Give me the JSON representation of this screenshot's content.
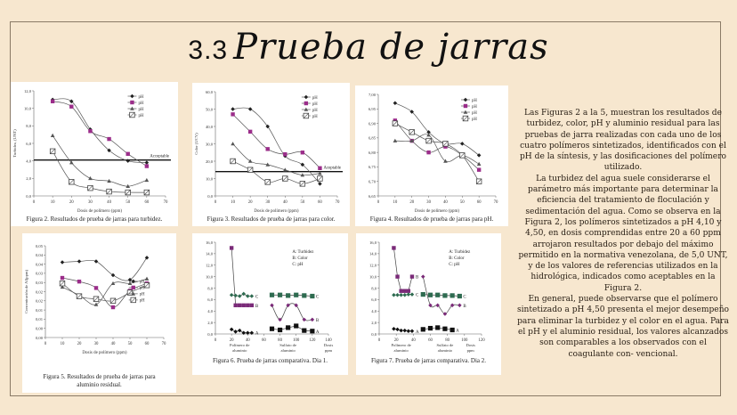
{
  "slide": {
    "title_number": "3.3",
    "title_text": "Prueba de jarras",
    "background": "#f7e7cf",
    "paragraphs": [
      "Las Figuras 2 a la 5, muestran los resultados de turbidez, color, pH y aluminio residual para las pruebas de jarra realizadas con cada uno de los cuatro polímeros sintetizados, identificados con el pH de la síntesis, y las dosificaciones del polímero utilizado.",
      "La turbidez del agua suele considerarse el parámetro más importante para determinar la eficiencia del tratamiento de floculación y sedimentación del agua. Como se observa en la Figura 2, los polímeros sintetizados a pH 4,10 y 4,50, en dosis comprendidas entre 20 a 60 ppm arrojaron resultados por debajo del máximo permitido en la normativa venezolana, de 5,0 UNT, y de los valores de referencias utilizados en la hidrológica, indicados como aceptables en la Figura 2.",
      "En general, puede observarse que el polímero sintetizado a pH 4,50 presenta el mejor desempeño para eliminar la turbidez y el color en el agua. Para el pH y el aluminio residual, los valores alcanzados son comparables a los observados con el coagulante con- vencional."
    ]
  },
  "chart_data": [
    {
      "id": "fig2",
      "type": "line",
      "caption": "Figura 2. Resultados de prueba de jarras para turbidez.",
      "xlabel": "Dosis de polímero (ppm)",
      "ylabel": "Turbidez, (UNT)",
      "xlim": [
        0,
        70
      ],
      "xticks": [
        "0",
        "10",
        "20",
        "30",
        "40",
        "50",
        "60",
        "70"
      ],
      "ylim": [
        0,
        12
      ],
      "yticks": [
        "0,0",
        "2,0",
        "4,0",
        "6,0",
        "8,0",
        "10,0",
        "12,0"
      ],
      "x": [
        10,
        20,
        30,
        40,
        50,
        60
      ],
      "reference_line": {
        "label": "Acceptable",
        "value": 4.1
      },
      "legend": [
        "pH",
        "pH",
        "pH",
        "pH"
      ],
      "series": [
        {
          "name": "pH",
          "marker": "diamond",
          "color": "#222222",
          "values": [
            11.0,
            10.8,
            7.6,
            5.2,
            4.0,
            3.8
          ]
        },
        {
          "name": "pH",
          "marker": "square",
          "color": "#9b2d8a",
          "values": [
            10.8,
            10.2,
            7.4,
            6.5,
            4.8,
            3.4
          ]
        },
        {
          "name": "pH",
          "marker": "triangle",
          "color": "#555555",
          "values": [
            6.9,
            3.8,
            2.0,
            1.7,
            1.1,
            1.8
          ]
        },
        {
          "name": "pH",
          "marker": "open-square",
          "color": "#444444",
          "values": [
            5.1,
            1.6,
            0.9,
            0.5,
            0.4,
            0.4
          ]
        }
      ]
    },
    {
      "id": "fig3",
      "type": "line",
      "caption": "Figura 3. Resultados de prueba de jarras para color.",
      "xlabel": "Dosis de polímero (ppm)",
      "ylabel": "Color (UCV)",
      "xlim": [
        0,
        70
      ],
      "xticks": [
        "0",
        "10",
        "20",
        "30",
        "40",
        "50",
        "60",
        "70"
      ],
      "ylim": [
        0,
        60
      ],
      "yticks": [
        "0,0",
        "10,0",
        "20,0",
        "30,0",
        "40,0",
        "50,0",
        "60,0"
      ],
      "x": [
        10,
        20,
        30,
        40,
        50,
        60
      ],
      "reference_line": {
        "label": "Aceptable",
        "value": 14
      },
      "legend": [
        "pH",
        "pH",
        "pH",
        "pH"
      ],
      "series": [
        {
          "name": "pH",
          "marker": "diamond",
          "color": "#222222",
          "values": [
            50,
            50,
            40,
            23,
            18,
            7
          ]
        },
        {
          "name": "pH",
          "marker": "square",
          "color": "#9b2d8a",
          "values": [
            47,
            37,
            27,
            24,
            25,
            16
          ]
        },
        {
          "name": "pH",
          "marker": "triangle",
          "color": "#555555",
          "values": [
            30,
            20,
            18,
            15,
            12,
            13
          ]
        },
        {
          "name": "pH",
          "marker": "open-square",
          "color": "#444444",
          "values": [
            20,
            15,
            8,
            10,
            7,
            10
          ]
        }
      ]
    },
    {
      "id": "fig4",
      "type": "line",
      "caption": "Figura 4. Resultados de prueba de jarras para pH.",
      "xlabel": "Dosis de polímero (ppm)",
      "ylabel": "",
      "xlim": [
        0,
        70
      ],
      "xticks": [
        "0",
        "10",
        "20",
        "30",
        "40",
        "50",
        "60",
        "70"
      ],
      "ylim": [
        6.65,
        7.0
      ],
      "yticks": [
        "6,65",
        "6,70",
        "6,75",
        "6,80",
        "6,85",
        "6,90",
        "6,95",
        "7,00"
      ],
      "x": [
        10,
        20,
        30,
        40,
        50,
        60
      ],
      "legend": [
        "pH",
        "pH",
        "pH",
        "pH"
      ],
      "series": [
        {
          "name": "pH",
          "marker": "diamond",
          "color": "#222222",
          "values": [
            6.97,
            6.94,
            6.87,
            6.83,
            6.83,
            6.79
          ]
        },
        {
          "name": "pH",
          "marker": "square",
          "color": "#9b2d8a",
          "values": [
            6.91,
            6.84,
            6.8,
            6.82,
            6.79,
            6.74
          ]
        },
        {
          "name": "pH",
          "marker": "triangle",
          "color": "#555555",
          "values": [
            6.84,
            6.84,
            6.86,
            6.77,
            6.79,
            6.76
          ]
        },
        {
          "name": "pH",
          "marker": "open-square",
          "color": "#444444",
          "values": [
            6.9,
            6.87,
            6.84,
            6.83,
            6.79,
            6.7
          ]
        }
      ]
    },
    {
      "id": "fig5",
      "type": "line",
      "caption": "Figura 5. Resultados de prueba de jarras para aluminio residual.",
      "xlabel": "Dosis de polímero (ppm)",
      "ylabel": "Concentración de Al(ppm)",
      "xlim": [
        0,
        70
      ],
      "xticks": [
        "0",
        "10",
        "20",
        "30",
        "40",
        "50",
        "60",
        "70"
      ],
      "ylim": [
        0,
        0.05
      ],
      "yticks": [
        "0,00",
        "0,00",
        "0,01",
        "0,01",
        "0,02",
        "0,02",
        "0,03",
        "0,03",
        "0,04",
        "0,04",
        "0,05"
      ],
      "x": [
        10,
        20,
        30,
        40,
        50,
        60
      ],
      "legend": [
        "pH",
        "pH",
        "pH",
        "pH"
      ],
      "series": [
        {
          "name": "pH",
          "marker": "diamond",
          "color": "#222222",
          "values": [
            0.041,
            0.0415,
            0.0415,
            0.034,
            0.0315,
            0.0435
          ]
        },
        {
          "name": "pH",
          "marker": "square",
          "color": "#9b2d8a",
          "values": [
            0.0325,
            0.0305,
            0.027,
            0.0165,
            0.0255,
            0.0295
          ]
        },
        {
          "name": "pH",
          "marker": "triangle",
          "color": "#555555",
          "values": [
            0.0275,
            0.023,
            0.018,
            0.0295,
            0.0295,
            0.032
          ]
        },
        {
          "name": "pH",
          "marker": "open-square",
          "color": "#444444",
          "values": [
            0.0295,
            0.0225,
            0.021,
            0.02,
            0.0245,
            0.0285
          ]
        }
      ]
    },
    {
      "id": "fig6",
      "type": "line",
      "caption": "Figura 6. Prueba de jarras comparativa. Dia 1.",
      "xlabel": "Dosis ppm",
      "group_labels": [
        "Polímero de aluminio",
        "Sulfato de aluminio"
      ],
      "xlim": [
        0,
        140
      ],
      "xticks": [
        "0",
        "20",
        "40",
        "60",
        "80",
        "100",
        "120",
        "140"
      ],
      "ylim": [
        0,
        16
      ],
      "yticks": [
        "0,0",
        "2,0",
        "4,0",
        "6,0",
        "8,0",
        "10,0",
        "12,0",
        "14,0",
        "16,0"
      ],
      "legend": [
        "A: Turbidez",
        "B: Color",
        "C: pH"
      ],
      "series": [
        {
          "name": "A",
          "group": "polimero",
          "x": [
            20,
            25,
            30,
            35,
            40,
            45
          ],
          "values": [
            0.8,
            0.4,
            0.6,
            0.2,
            0.2,
            0.2
          ]
        },
        {
          "name": "B",
          "group": "polimero",
          "x": [
            20,
            25,
            30,
            35,
            40,
            45
          ],
          "values": [
            15,
            5,
            5,
            5,
            5,
            5
          ]
        },
        {
          "name": "C",
          "group": "polimero",
          "x": [
            20,
            25,
            30,
            35,
            40,
            45
          ],
          "values": [
            6.8,
            6.7,
            6.6,
            7.0,
            6.6,
            6.6
          ]
        },
        {
          "name": "A",
          "group": "sulfato",
          "x": [
            70,
            80,
            90,
            100,
            110,
            120
          ],
          "values": [
            0.9,
            0.7,
            1.1,
            1.4,
            0.6,
            0.5
          ]
        },
        {
          "name": "B",
          "group": "sulfato",
          "x": [
            70,
            80,
            90,
            100,
            110,
            120
          ],
          "values": [
            5,
            2.5,
            5,
            5,
            2.5,
            2.5
          ]
        },
        {
          "name": "C",
          "group": "sulfato",
          "x": [
            70,
            80,
            90,
            100,
            110,
            120
          ],
          "values": [
            6.8,
            6.8,
            6.7,
            6.8,
            6.7,
            6.6
          ]
        }
      ]
    },
    {
      "id": "fig7",
      "type": "line",
      "caption": "Figura 7. Prueba de jarras comparativa. Dia 2.",
      "xlabel": "Dosis ppm",
      "group_labels": [
        "Polímero de aluminio",
        "Sulfato de aluminio"
      ],
      "xlim": [
        0,
        140
      ],
      "xticks": [
        "0",
        "20",
        "40",
        "60",
        "80",
        "100",
        "120"
      ],
      "ylim": [
        0,
        16
      ],
      "yticks": [
        "0,0",
        "2,0",
        "4,0",
        "6,0",
        "8,0",
        "10,0",
        "12,0",
        "14,0",
        "16,0"
      ],
      "legend": [
        "A: Turbidez",
        "B: Color",
        "C: pH"
      ],
      "series": [
        {
          "name": "A",
          "group": "polimero",
          "x": [
            20,
            25,
            30,
            35,
            40,
            45
          ],
          "values": [
            0.9,
            0.8,
            0.6,
            0.6,
            0.5,
            0.5
          ]
        },
        {
          "name": "B",
          "group": "polimero",
          "x": [
            20,
            25,
            30,
            35,
            40,
            45
          ],
          "values": [
            15,
            10,
            7.5,
            7.5,
            7.5,
            10
          ]
        },
        {
          "name": "C",
          "group": "polimero",
          "x": [
            20,
            25,
            30,
            35,
            40,
            45
          ],
          "values": [
            6.8,
            6.8,
            6.8,
            6.8,
            6.9,
            6.9
          ]
        },
        {
          "name": "A",
          "group": "sulfato",
          "x": [
            60,
            70,
            80,
            90,
            100
          ],
          "values": [
            0.8,
            1.0,
            1.1,
            0.9,
            0.7
          ]
        },
        {
          "name": "B",
          "group": "sulfato",
          "x": [
            60,
            70,
            80,
            90,
            100,
            110
          ],
          "values": [
            10,
            5,
            5,
            3.5,
            5,
            5
          ]
        },
        {
          "name": "C",
          "group": "sulfato",
          "x": [
            60,
            70,
            80,
            90,
            100,
            110
          ],
          "values": [
            6.9,
            6.8,
            6.8,
            6.7,
            6.7,
            6.6
          ]
        }
      ]
    }
  ]
}
